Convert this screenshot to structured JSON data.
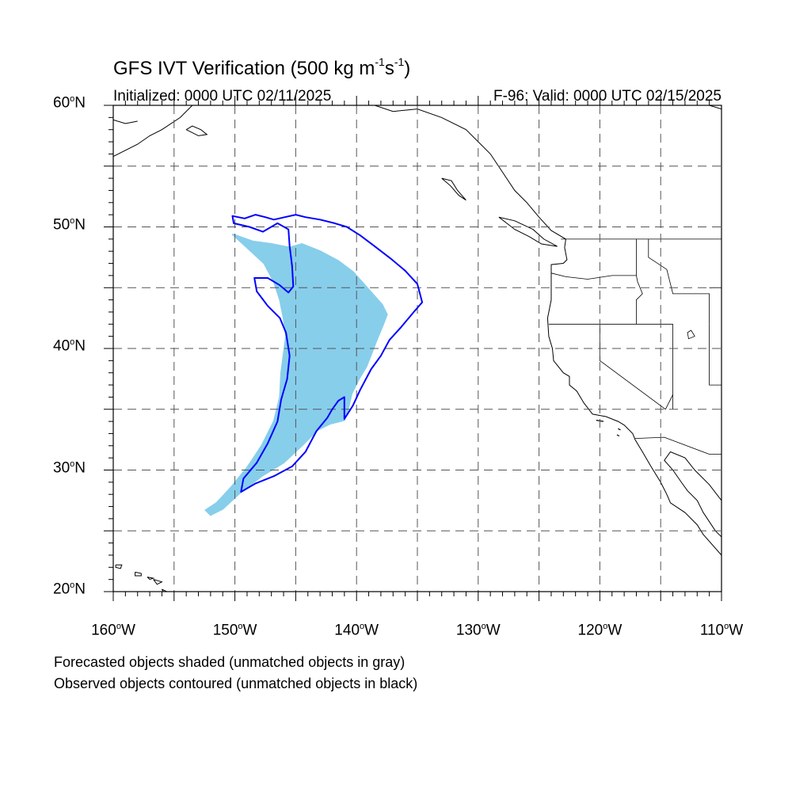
{
  "title": {
    "prefix": "GFS IVT Verification (500 kg m",
    "exp1": "-1",
    "mid": "s",
    "exp2": "-1",
    "suffix": ")"
  },
  "initialized": "Initialized: 0000 UTC 02/11/2025",
  "valid": "F-96: Valid: 0000 UTC 02/15/2025",
  "map": {
    "lon_range": [
      -160,
      -110
    ],
    "lat_range": [
      20,
      60
    ],
    "grid_lons": [
      -155,
      -150,
      -145,
      -140,
      -135,
      -130,
      -125,
      -120,
      -115
    ],
    "grid_lats": [
      25,
      30,
      35,
      40,
      45,
      50,
      55
    ],
    "lat_labels": [
      {
        "lat": 60,
        "base": "60",
        "deg": "o",
        "hemi": "N"
      },
      {
        "lat": 50,
        "base": "50",
        "deg": "o",
        "hemi": "N"
      },
      {
        "lat": 40,
        "base": "40",
        "deg": "o",
        "hemi": "N"
      },
      {
        "lat": 30,
        "base": "30",
        "deg": "o",
        "hemi": "N"
      },
      {
        "lat": 20,
        "base": "20",
        "deg": "o",
        "hemi": "N"
      }
    ],
    "lon_labels": [
      {
        "lon": -160,
        "base": "160",
        "deg": "o",
        "hemi": "W"
      },
      {
        "lon": -150,
        "base": "150",
        "deg": "o",
        "hemi": "W"
      },
      {
        "lon": -140,
        "base": "140",
        "deg": "o",
        "hemi": "W"
      },
      {
        "lon": -130,
        "base": "130",
        "deg": "o",
        "hemi": "W"
      },
      {
        "lon": -120,
        "base": "120",
        "deg": "o",
        "hemi": "W"
      },
      {
        "lon": -110,
        "base": "110",
        "deg": "o",
        "hemi": "W"
      }
    ],
    "forecast_fill_color": "#87ceeb",
    "observed_contour_color": "#0000ff",
    "forecast_object": [
      [
        -150.2,
        49.4
      ],
      [
        -148.5,
        48.8
      ],
      [
        -147.0,
        48.6
      ],
      [
        -145.5,
        48.3
      ],
      [
        -144.5,
        48.6
      ],
      [
        -143.0,
        48.0
      ],
      [
        -141.5,
        47.2
      ],
      [
        -140.3,
        46.3
      ],
      [
        -139.5,
        45.4
      ],
      [
        -138.7,
        44.5
      ],
      [
        -137.9,
        43.6
      ],
      [
        -137.5,
        42.8
      ],
      [
        -137.8,
        42.0
      ],
      [
        -138.3,
        40.8
      ],
      [
        -138.8,
        39.5
      ],
      [
        -139.2,
        38.5
      ],
      [
        -139.8,
        37.5
      ],
      [
        -140.4,
        36.3
      ],
      [
        -140.7,
        35.0
      ],
      [
        -141.0,
        34.1
      ],
      [
        -142.2,
        33.8
      ],
      [
        -143.2,
        33.3
      ],
      [
        -144.5,
        32.0
      ],
      [
        -146.0,
        30.6
      ],
      [
        -147.8,
        29.5
      ],
      [
        -149.5,
        28.2
      ],
      [
        -151.0,
        26.8
      ],
      [
        -152.0,
        26.3
      ],
      [
        -152.4,
        26.7
      ],
      [
        -151.5,
        27.3
      ],
      [
        -150.3,
        28.6
      ],
      [
        -149.0,
        30.2
      ],
      [
        -147.8,
        32.0
      ],
      [
        -146.8,
        34.0
      ],
      [
        -146.3,
        36.0
      ],
      [
        -146.2,
        38.0
      ],
      [
        -146.0,
        39.5
      ],
      [
        -145.8,
        41.0
      ],
      [
        -146.0,
        42.5
      ],
      [
        -146.3,
        44.0
      ],
      [
        -146.8,
        45.5
      ],
      [
        -147.6,
        47.0
      ],
      [
        -149.0,
        48.3
      ]
    ],
    "observed_object": [
      [
        -150.2,
        50.9
      ],
      [
        -149.2,
        50.7
      ],
      [
        -148.3,
        51.0
      ],
      [
        -147.5,
        50.8
      ],
      [
        -146.8,
        50.6
      ],
      [
        -145.9,
        50.8
      ],
      [
        -145.0,
        51.0
      ],
      [
        -144.2,
        50.8
      ],
      [
        -143.0,
        50.6
      ],
      [
        -141.8,
        50.3
      ],
      [
        -140.8,
        50.0
      ],
      [
        -139.7,
        49.3
      ],
      [
        -138.5,
        48.4
      ],
      [
        -137.2,
        47.4
      ],
      [
        -136.0,
        46.4
      ],
      [
        -135.0,
        45.3
      ],
      [
        -134.6,
        43.8
      ],
      [
        -135.3,
        43.0
      ],
      [
        -136.3,
        41.8
      ],
      [
        -137.3,
        40.7
      ],
      [
        -138.0,
        39.4
      ],
      [
        -138.8,
        38.3
      ],
      [
        -139.7,
        36.6
      ],
      [
        -140.3,
        35.3
      ],
      [
        -141.0,
        34.2
      ],
      [
        -141.0,
        36.0
      ],
      [
        -141.5,
        35.7
      ],
      [
        -142.0,
        35.0
      ],
      [
        -142.4,
        34.3
      ],
      [
        -143.3,
        33.2
      ],
      [
        -144.2,
        31.5
      ],
      [
        -145.3,
        30.3
      ],
      [
        -146.8,
        29.5
      ],
      [
        -148.3,
        28.9
      ],
      [
        -149.5,
        28.2
      ],
      [
        -149.3,
        29.3
      ],
      [
        -148.2,
        30.6
      ],
      [
        -147.3,
        32.2
      ],
      [
        -146.5,
        34.0
      ],
      [
        -146.2,
        35.8
      ],
      [
        -145.7,
        37.5
      ],
      [
        -145.5,
        39.4
      ],
      [
        -145.8,
        41.3
      ],
      [
        -146.3,
        42.5
      ],
      [
        -147.3,
        43.5
      ],
      [
        -148.2,
        44.7
      ],
      [
        -148.4,
        45.8
      ],
      [
        -147.3,
        45.8
      ],
      [
        -146.3,
        45.2
      ],
      [
        -145.6,
        44.6
      ],
      [
        -145.2,
        45.1
      ],
      [
        -145.3,
        46.8
      ],
      [
        -145.5,
        48.4
      ],
      [
        -145.6,
        49.8
      ],
      [
        -146.5,
        50.3
      ],
      [
        -147.7,
        49.6
      ],
      [
        -148.8,
        50.0
      ],
      [
        -150.1,
        50.3
      ]
    ],
    "coastlines": [
      [
        [
          -130.0,
          57.0
        ],
        [
          -131.0,
          58.0
        ],
        [
          -133.0,
          59.0
        ],
        [
          -135.0,
          59.7
        ],
        [
          -137.0,
          59.5
        ],
        [
          -138.5,
          60.0
        ]
      ],
      [
        [
          -130.0,
          57.0
        ],
        [
          -129.0,
          56.0
        ],
        [
          -128.0,
          54.5
        ],
        [
          -127.0,
          53.0
        ],
        [
          -126.0,
          52.0
        ],
        [
          -125.0,
          50.8
        ],
        [
          -124.0,
          49.7
        ],
        [
          -122.8,
          49.0
        ],
        [
          -122.9,
          48.3
        ],
        [
          -122.7,
          47.3
        ],
        [
          -123.0,
          47.0
        ],
        [
          -124.0,
          46.9
        ],
        [
          -124.0,
          46.2
        ],
        [
          -124.0,
          44.0
        ],
        [
          -124.3,
          42.5
        ],
        [
          -124.2,
          41.0
        ],
        [
          -123.9,
          40.0
        ],
        [
          -123.8,
          39.0
        ],
        [
          -123.0,
          38.0
        ],
        [
          -122.5,
          37.7
        ],
        [
          -122.5,
          37.0
        ],
        [
          -121.9,
          36.5
        ],
        [
          -121.3,
          35.5
        ],
        [
          -120.6,
          34.6
        ],
        [
          -119.5,
          34.4
        ],
        [
          -118.5,
          34.0
        ],
        [
          -118.0,
          33.7
        ],
        [
          -117.3,
          33.0
        ],
        [
          -117.1,
          32.5
        ],
        [
          -116.5,
          31.5
        ],
        [
          -115.8,
          30.3
        ],
        [
          -115.0,
          29.0
        ],
        [
          -114.5,
          28.0
        ],
        [
          -114.2,
          27.3
        ],
        [
          -113.0,
          26.5
        ],
        [
          -112.0,
          25.5
        ],
        [
          -111.5,
          24.7
        ],
        [
          -110.0,
          23.0
        ]
      ],
      [
        [
          -110.0,
          27.5
        ],
        [
          -111.0,
          28.8
        ],
        [
          -112.2,
          30.0
        ],
        [
          -113.0,
          31.0
        ],
        [
          -114.2,
          31.5
        ],
        [
          -114.7,
          30.8
        ],
        [
          -114.0,
          30.0
        ],
        [
          -113.3,
          29.0
        ],
        [
          -112.8,
          28.3
        ],
        [
          -112.0,
          27.5
        ],
        [
          -111.5,
          26.5
        ],
        [
          -110.5,
          25.0
        ],
        [
          -110.0,
          24.5
        ]
      ],
      [
        [
          -128.3,
          50.8
        ],
        [
          -127.0,
          50.5
        ],
        [
          -125.5,
          49.8
        ],
        [
          -124.6,
          49.0
        ],
        [
          -123.5,
          48.4
        ],
        [
          -124.8,
          48.6
        ],
        [
          -125.8,
          49.2
        ],
        [
          -127.0,
          49.8
        ],
        [
          -128.3,
          50.8
        ]
      ],
      [
        [
          -133.0,
          54.0
        ],
        [
          -132.3,
          53.4
        ],
        [
          -131.6,
          52.6
        ],
        [
          -131.0,
          52.2
        ],
        [
          -131.7,
          53.0
        ],
        [
          -132.2,
          53.8
        ],
        [
          -133.0,
          54.0
        ]
      ],
      [
        [
          -160.0,
          55.8
        ],
        [
          -158.0,
          56.8
        ],
        [
          -157.0,
          57.5
        ],
        [
          -156.0,
          58.0
        ],
        [
          -154.5,
          59.0
        ],
        [
          -153.5,
          60.0
        ]
      ],
      [
        [
          -160.0,
          58.8
        ],
        [
          -159.0,
          58.5
        ],
        [
          -158.0,
          58.7
        ]
      ],
      [
        [
          -154.0,
          58.0
        ],
        [
          -153.0,
          57.5
        ],
        [
          -152.3,
          57.6
        ],
        [
          -152.8,
          58.0
        ],
        [
          -153.5,
          58.3
        ],
        [
          -154.0,
          58.0
        ]
      ],
      [
        [
          -111.0,
          60.0
        ],
        [
          -110.0,
          59.7
        ]
      ]
    ],
    "hawaii": [
      [
        [
          -159.8,
          22.2
        ],
        [
          -159.3,
          22.2
        ],
        [
          -159.4,
          21.9
        ],
        [
          -159.8,
          22.0
        ],
        [
          -159.8,
          22.2
        ]
      ],
      [
        [
          -158.2,
          21.6
        ],
        [
          -157.7,
          21.5
        ],
        [
          -157.7,
          21.3
        ],
        [
          -158.2,
          21.3
        ],
        [
          -158.2,
          21.6
        ]
      ],
      [
        [
          -157.2,
          21.2
        ],
        [
          -156.7,
          21.1
        ],
        [
          -157.0,
          21.0
        ],
        [
          -157.2,
          21.2
        ]
      ],
      [
        [
          -156.7,
          21.0
        ],
        [
          -156.0,
          20.8
        ],
        [
          -156.4,
          20.6
        ],
        [
          -156.7,
          21.0
        ]
      ],
      [
        [
          -156.0,
          20.2
        ],
        [
          -155.0,
          19.7
        ],
        [
          -155.6,
          19.5
        ],
        [
          -156.0,
          20.2
        ]
      ]
    ],
    "borders": [
      [
        [
          -123.2,
          49.0
        ],
        [
          -110.0,
          49.0
        ]
      ],
      [
        [
          -124.2,
          42.0
        ],
        [
          -114.0,
          42.0
        ]
      ],
      [
        [
          -120.0,
          42.0
        ],
        [
          -120.0,
          39.0
        ],
        [
          -114.6,
          35.0
        ]
      ],
      [
        [
          -114.0,
          42.0
        ],
        [
          -114.0,
          35.0
        ]
      ],
      [
        [
          -117.0,
          49.0
        ],
        [
          -117.0,
          46.0
        ],
        [
          -116.9,
          45.5
        ],
        [
          -116.5,
          44.5
        ],
        [
          -117.0,
          44.0
        ],
        [
          -117.0,
          42.0
        ]
      ],
      [
        [
          -116.0,
          49.0
        ],
        [
          -116.0,
          47.5
        ],
        [
          -114.5,
          46.5
        ],
        [
          -114.0,
          44.5
        ],
        [
          -113.0,
          44.5
        ],
        [
          -111.0,
          44.5
        ],
        [
          -111.0,
          42.0
        ]
      ],
      [
        [
          -124.0,
          46.2
        ],
        [
          -122.8,
          45.9
        ],
        [
          -121.0,
          45.7
        ],
        [
          -119.0,
          46.0
        ],
        [
          -117.0,
          46.0
        ]
      ],
      [
        [
          -117.1,
          32.6
        ],
        [
          -114.7,
          32.7
        ],
        [
          -111.0,
          31.3
        ],
        [
          -110.0,
          31.3
        ]
      ],
      [
        [
          -114.6,
          35.0
        ],
        [
          -114.0,
          36.2
        ]
      ],
      [
        [
          -111.0,
          42.0
        ],
        [
          -111.0,
          37.0
        ],
        [
          -110.0,
          37.0
        ]
      ],
      [
        [
          -111.0,
          45.0
        ],
        [
          -110.0,
          45.0
        ]
      ]
    ],
    "lakes": [
      [
        [
          -112.5,
          41.5
        ],
        [
          -112.2,
          41.0
        ],
        [
          -112.7,
          40.8
        ],
        [
          -112.8,
          41.3
        ],
        [
          -112.5,
          41.5
        ]
      ]
    ],
    "channel_islands": [
      [
        [
          -120.3,
          34.1
        ],
        [
          -119.7,
          34.0
        ]
      ],
      [
        [
          -118.5,
          33.4
        ],
        [
          -118.3,
          33.3
        ]
      ],
      [
        [
          -118.6,
          32.9
        ],
        [
          -118.4,
          32.8
        ]
      ]
    ]
  },
  "footnote1": "Forecasted objects shaded (unmatched objects in gray)",
  "footnote2": "Observed objects contoured (unmatched objects in black)"
}
